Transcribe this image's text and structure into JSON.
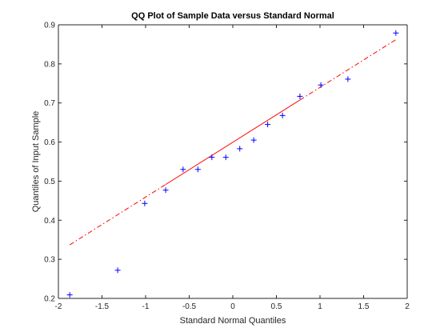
{
  "chart_data": {
    "type": "scatter",
    "title": "QQ Plot of Sample Data versus Standard Normal",
    "xlabel": "Standard Normal Quantiles",
    "ylabel": "Quantiles of Input Sample",
    "xlim": [
      -2,
      2
    ],
    "ylim": [
      0.2,
      0.9
    ],
    "xticks": [
      -2,
      -1.5,
      -1,
      -0.5,
      0,
      0.5,
      1,
      1.5,
      2
    ],
    "xtick_labels": [
      "-2",
      "-1.5",
      "-1",
      "-0.5",
      "0",
      "0.5",
      "1",
      "1.5",
      "2"
    ],
    "yticks": [
      0.2,
      0.3,
      0.4,
      0.5,
      0.6,
      0.7,
      0.8,
      0.9
    ],
    "ytick_labels": [
      "0.2",
      "0.3",
      "0.4",
      "0.5",
      "0.6",
      "0.7",
      "0.8",
      "0.9"
    ],
    "grid": false,
    "series": [
      {
        "marker": "+",
        "color": "#0000ff",
        "x": [
          -1.87,
          -1.32,
          -1.01,
          -0.77,
          -0.57,
          -0.4,
          -0.24,
          -0.08,
          0.08,
          0.24,
          0.4,
          0.57,
          0.77,
          1.01,
          1.32,
          1.87
        ],
        "y": [
          0.209,
          0.272,
          0.443,
          0.477,
          0.53,
          0.53,
          0.561,
          0.561,
          0.583,
          0.605,
          0.645,
          0.668,
          0.717,
          0.746,
          0.761,
          0.879
        ]
      }
    ],
    "reference_line": {
      "color": "#ff0000",
      "x": [
        -1.87,
        1.87
      ],
      "y": [
        0.337,
        0.862
      ],
      "solid_x_range": [
        -0.77,
        0.77
      ]
    }
  }
}
